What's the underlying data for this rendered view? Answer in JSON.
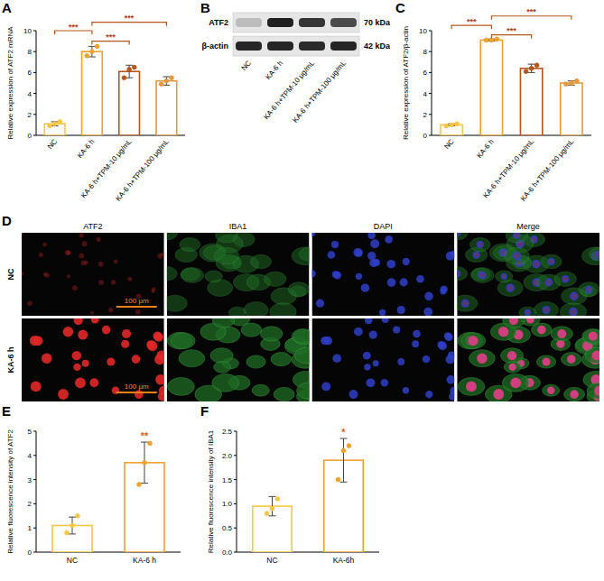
{
  "chart_data": [
    {
      "panel": "A",
      "type": "bar",
      "y_label": "Relative expression of ATF2 mRNA",
      "categories": [
        "NC",
        "KA-6 h",
        "KA-6 h+TPM-10 μg/mL",
        "KA-6 h+TPM-100 μg/mL"
      ],
      "values": [
        1.1,
        8.0,
        6.1,
        5.2
      ],
      "errors": [
        0.2,
        0.5,
        0.6,
        0.4
      ],
      "points": [
        [
          0.9,
          1.1,
          1.3
        ],
        [
          7.6,
          8.0,
          8.5
        ],
        [
          5.5,
          6.3,
          6.5
        ],
        [
          4.9,
          5.2,
          5.5
        ]
      ],
      "colors": [
        "#f7c744",
        "#f0a22e",
        "#b5561c",
        "#e39a3b"
      ],
      "ylim": [
        0,
        10
      ],
      "yticks": [
        0,
        2,
        4,
        6,
        8,
        10
      ],
      "annotations": [
        {
          "from": 0,
          "to": 1,
          "y": 10.0,
          "label": "***"
        },
        {
          "from": 1,
          "to": 2,
          "y": 9.0,
          "label": "***"
        },
        {
          "from": 1,
          "to": 3,
          "y": 10.8,
          "label": "***"
        }
      ]
    },
    {
      "panel": "C",
      "type": "bar",
      "y_label": "Relative expression of ATF2/β-actin",
      "categories": [
        "NC",
        "KA-6 h",
        "KA-6 h+TPM-10 μg/mL",
        "KA-6 h+TPM-100 μg/mL"
      ],
      "values": [
        1.0,
        9.1,
        6.4,
        5.0
      ],
      "errors": [
        0.1,
        0.1,
        0.4,
        0.2
      ],
      "points": [
        [
          0.9,
          1.0,
          1.1
        ],
        [
          9.1,
          9.1,
          9.2
        ],
        [
          6.1,
          6.4,
          6.7
        ],
        [
          4.9,
          5.0,
          5.2
        ]
      ],
      "colors": [
        "#f7c744",
        "#f0a22e",
        "#b5561c",
        "#e39a3b"
      ],
      "ylim": [
        0,
        10
      ],
      "yticks": [
        0,
        2,
        4,
        6,
        8,
        10
      ],
      "annotations": [
        {
          "from": 0,
          "to": 1,
          "y": 10.5,
          "label": "***"
        },
        {
          "from": 1,
          "to": 2,
          "y": 9.6,
          "label": "***"
        },
        {
          "from": 1,
          "to": 3,
          "y": 11.4,
          "label": "***"
        }
      ]
    },
    {
      "panel": "E",
      "type": "bar",
      "y_label": "Relative fluorescence intensity of ATF2",
      "categories": [
        "NC",
        "KA-6 h"
      ],
      "values": [
        1.1,
        3.7
      ],
      "errors": [
        0.35,
        0.85
      ],
      "points": [
        [
          0.8,
          1.1,
          1.5
        ],
        [
          2.8,
          3.7,
          4.5
        ]
      ],
      "colors": [
        "#f7c744",
        "#f0a22e"
      ],
      "ylim": [
        0,
        5
      ],
      "yticks": [
        0,
        1,
        2,
        3,
        4,
        5
      ],
      "annotations": [
        {
          "category": 1,
          "label": "**"
        }
      ]
    },
    {
      "panel": "F",
      "type": "bar",
      "y_label": "Relative fluorescence intensity of IBA1",
      "categories": [
        "NC",
        "KA-6h"
      ],
      "values": [
        0.95,
        1.9
      ],
      "errors": [
        0.2,
        0.45
      ],
      "points": [
        [
          0.8,
          0.9,
          1.1
        ],
        [
          1.5,
          2.1,
          2.2
        ]
      ],
      "colors": [
        "#f7c744",
        "#f0a22e"
      ],
      "ylim": [
        0,
        2.5
      ],
      "yticks": [
        {
          "value": 0,
          "label": "0.0"
        },
        0.5,
        {
          "value": 1,
          "label": "1.0"
        },
        1.5,
        {
          "value": 2,
          "label": "2.0"
        },
        2.5
      ],
      "annotations": [
        {
          "category": 1,
          "label": "*"
        }
      ]
    }
  ],
  "blot": {
    "panel": "B",
    "bands": [
      {
        "label": "ATF2",
        "size": "70 kDa"
      },
      {
        "label": "β-actin",
        "size": "42 kDa"
      }
    ],
    "lanes": [
      "NC",
      "KA-6 h",
      "KA-6 h+TPM-10 μg/mL",
      "KA-6 h+TPM-100 μg/mL"
    ]
  },
  "images": {
    "panel": "D",
    "columns": [
      "ATF2",
      "IBA1",
      "DAPI",
      "Merge"
    ],
    "rows": [
      "NC",
      "KA-6 h"
    ],
    "scale_bar": "100 μm"
  }
}
